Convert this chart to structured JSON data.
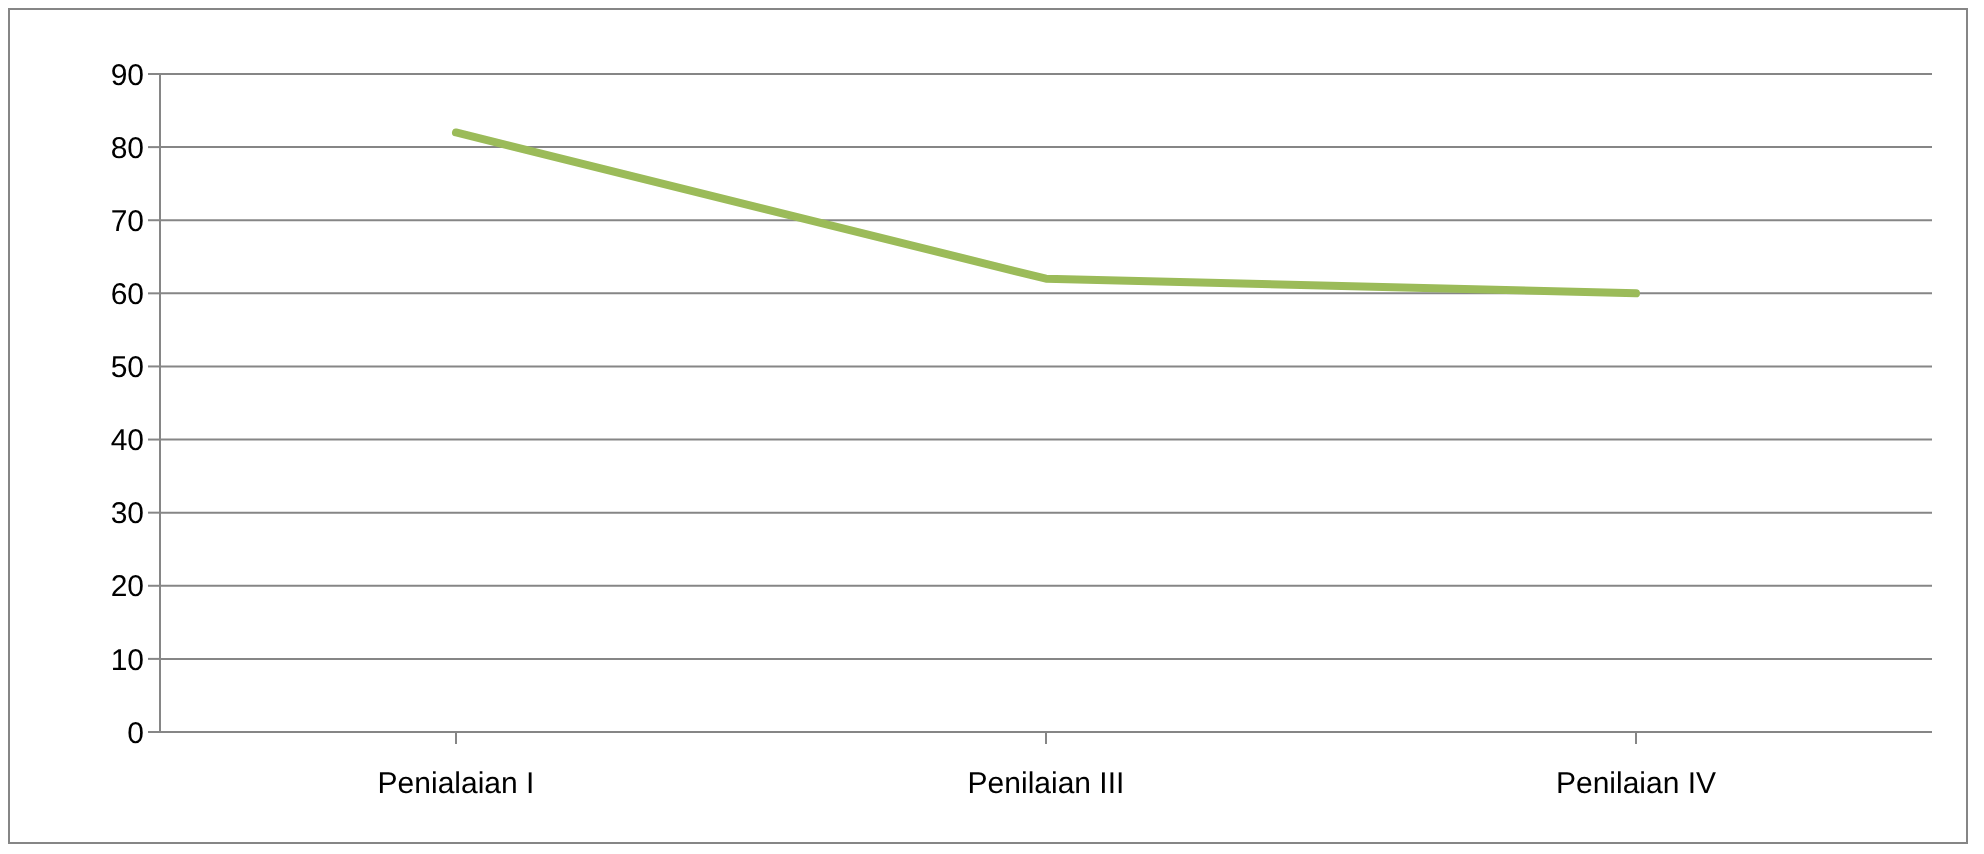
{
  "chart_data": {
    "type": "line",
    "categories": [
      "Penialaian I",
      "Penilaian III",
      "Penilaian IV"
    ],
    "series": [
      {
        "color": "#9bbb59",
        "values": [
          82,
          62,
          60
        ]
      }
    ],
    "ylim": [
      0,
      90
    ],
    "yticks": [
      0,
      10,
      20,
      30,
      40,
      50,
      60,
      70,
      80,
      90
    ],
    "grid": "y",
    "marker": "none",
    "line_style": "solid"
  }
}
